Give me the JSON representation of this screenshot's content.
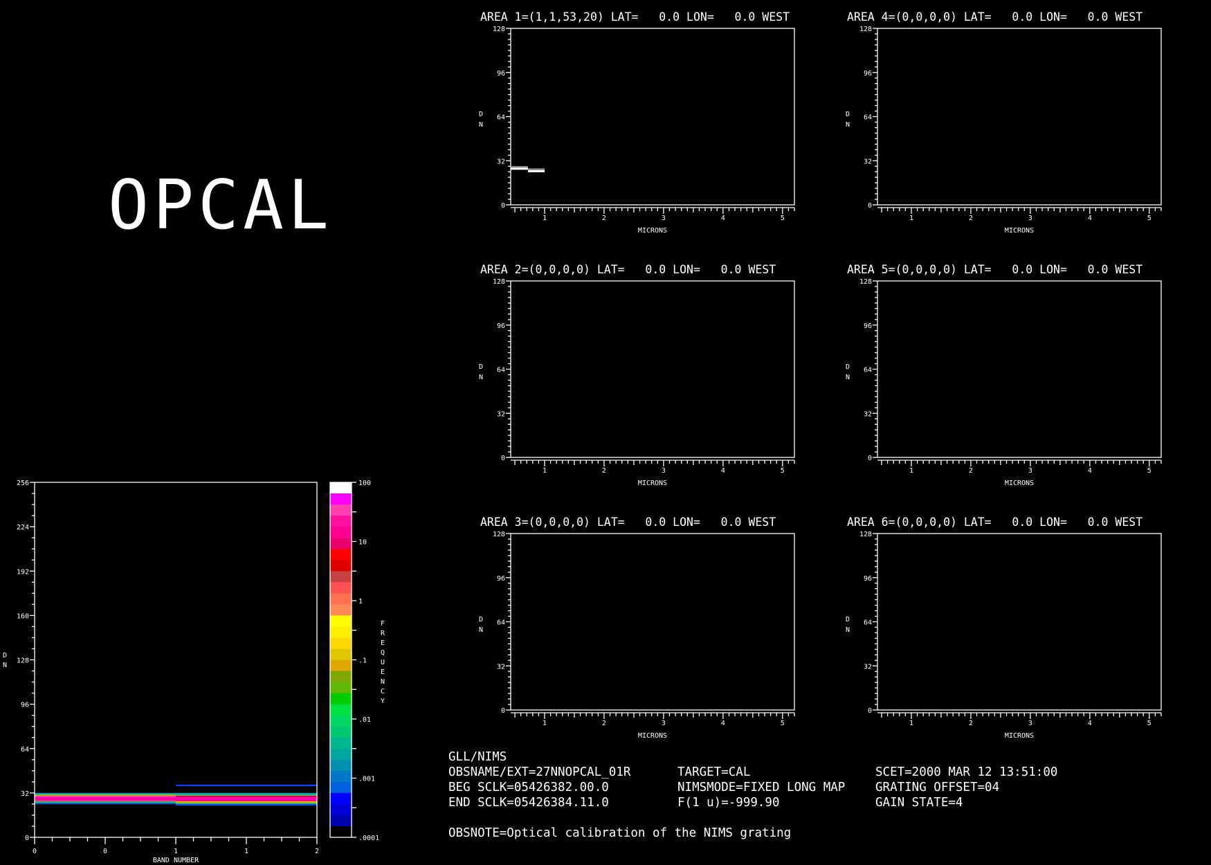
{
  "logo_text": "OPCAL",
  "info": {
    "instrument": "GLL/NIMS",
    "obsname": "OBSNAME/EXT=27NNOPCAL_01R",
    "beg_sclk": "BEG SCLK=05426382.00.0",
    "end_sclk": "END SCLK=05426384.11.0",
    "target": "TARGET=CAL",
    "nimsmode": "NIMSMODE=FIXED LONG MAP",
    "f1u": "F(1 u)=-999.90",
    "scet": "SCET=2000 MAR 12 13:51:00",
    "grating_offset": "GRATING OFFSET=04",
    "gain_state": "GAIN STATE=4",
    "obsnote": "OBSNOTE=Optical calibration of the NIMS grating"
  },
  "chart_data": [
    {
      "type": "line",
      "title": "AREA 1=(1,1,53,20) LAT=   0.0 LON=   0.0 WEST",
      "xlabel": "MICRONS",
      "ylabel": "DN",
      "xlim": [
        0.43,
        5.2
      ],
      "ylim": [
        0,
        128
      ],
      "xticks": [
        1,
        2,
        3,
        4,
        5
      ],
      "yticks": [
        0,
        32,
        64,
        96,
        128
      ],
      "series": [
        {
          "color": "#8a8a8a",
          "segments": [
            {
              "x0": 0.43,
              "x1": 0.72,
              "y": 27.4
            },
            {
              "x0": 0.72,
              "x1": 1.0,
              "y": 25.7
            }
          ]
        },
        {
          "color": "#ffffff",
          "segments": [
            {
              "x0": 0.43,
              "x1": 0.72,
              "y": 26.2
            },
            {
              "x0": 0.72,
              "x1": 1.0,
              "y": 24.4
            }
          ]
        }
      ]
    },
    {
      "type": "line",
      "title": "AREA 2=(0,0,0,0) LAT=   0.0 LON=   0.0 WEST",
      "xlabel": "MICRONS",
      "ylabel": "DN",
      "xlim": [
        0.43,
        5.2
      ],
      "ylim": [
        0,
        128
      ],
      "xticks": [
        1,
        2,
        3,
        4,
        5
      ],
      "yticks": [
        0,
        32,
        64,
        96,
        128
      ],
      "series": []
    },
    {
      "type": "line",
      "title": "AREA 3=(0,0,0,0) LAT=   0.0 LON=   0.0 WEST",
      "xlabel": "MICRONS",
      "ylabel": "DN",
      "xlim": [
        0.43,
        5.2
      ],
      "ylim": [
        0,
        128
      ],
      "xticks": [
        1,
        2,
        3,
        4,
        5
      ],
      "yticks": [
        0,
        32,
        64,
        96,
        128
      ],
      "series": []
    },
    {
      "type": "line",
      "title": "AREA 4=(0,0,0,0) LAT=   0.0 LON=   0.0 WEST",
      "xlabel": "MICRONS",
      "ylabel": "DN",
      "xlim": [
        0.43,
        5.2
      ],
      "ylim": [
        0,
        128
      ],
      "xticks": [
        1,
        2,
        3,
        4,
        5
      ],
      "yticks": [
        0,
        32,
        64,
        96,
        128
      ],
      "series": []
    },
    {
      "type": "line",
      "title": "AREA 5=(0,0,0,0) LAT=   0.0 LON=   0.0 WEST",
      "xlabel": "MICRONS",
      "ylabel": "DN",
      "xlim": [
        0.43,
        5.2
      ],
      "ylim": [
        0,
        128
      ],
      "xticks": [
        1,
        2,
        3,
        4,
        5
      ],
      "yticks": [
        0,
        32,
        64,
        96,
        128
      ],
      "series": []
    },
    {
      "type": "line",
      "title": "AREA 6=(0,0,0,0) LAT=   0.0 LON=   0.0 WEST",
      "xlabel": "MICRONS",
      "ylabel": "DN",
      "xlim": [
        0.43,
        5.2
      ],
      "ylim": [
        0,
        128
      ],
      "xticks": [
        1,
        2,
        3,
        4,
        5
      ],
      "yticks": [
        0,
        32,
        64,
        96,
        128
      ],
      "series": []
    },
    {
      "type": "heatmap",
      "xlabel": "BAND NUMBER",
      "ylabel": "DN",
      "xlim": [
        0,
        2
      ],
      "ylim": [
        0,
        256
      ],
      "xtick_labels": [
        "0",
        "0",
        "1",
        "1",
        "2"
      ],
      "yticks": [
        0,
        32,
        64,
        96,
        128,
        160,
        192,
        224,
        256
      ],
      "colorbar": {
        "label": "FREQUENCY",
        "tick_labels": [
          "100",
          "10",
          "1",
          ".1",
          ".01",
          ".001",
          ".0001"
        ],
        "colors": [
          "#ffffff",
          "#ff00ff",
          "#ff40b0",
          "#ff10a0",
          "#ff0090",
          "#e8006c",
          "#ff0000",
          "#e00000",
          "#c84040",
          "#ff5050",
          "#ff7050",
          "#ff8858",
          "#ffff00",
          "#fff000",
          "#ffd800",
          "#e0c800",
          "#e0a800",
          "#80a800",
          "#60b800",
          "#00cc00",
          "#00e040",
          "#00d860",
          "#00c870",
          "#00b890",
          "#00a8a0",
          "#0090b0",
          "#0078c8",
          "#0060e0",
          "#0000ff",
          "#0000d8",
          "#0000b0",
          "#000000"
        ]
      },
      "bands": [
        {
          "band": 0,
          "cells": [
            {
              "dn": 31,
              "color": "#00a0c0"
            },
            {
              "dn": 30,
              "color": "#a0c000"
            },
            {
              "dn": 29,
              "color": "#ff40a0"
            },
            {
              "dn": 28,
              "color": "#ff00c0"
            },
            {
              "dn": 27,
              "color": "#ff0090"
            },
            {
              "dn": 26,
              "color": "#ff20a0"
            },
            {
              "dn": 25,
              "color": "#40c060"
            },
            {
              "dn": 24,
              "color": "#0060d0"
            }
          ]
        },
        {
          "band": 1,
          "cells": [
            {
              "dn": 37,
              "color": "#0040ff"
            },
            {
              "dn": 31,
              "color": "#00a0b0"
            },
            {
              "dn": 30,
              "color": "#40c060"
            },
            {
              "dn": 29,
              "color": "#e00060"
            },
            {
              "dn": 28,
              "color": "#ff0090"
            },
            {
              "dn": 27,
              "color": "#ff00c0"
            },
            {
              "dn": 26,
              "color": "#ff0080"
            },
            {
              "dn": 25,
              "color": "#e0c000"
            },
            {
              "dn": 24,
              "color": "#40b060"
            },
            {
              "dn": 23,
              "color": "#0050e0"
            }
          ]
        }
      ]
    }
  ]
}
